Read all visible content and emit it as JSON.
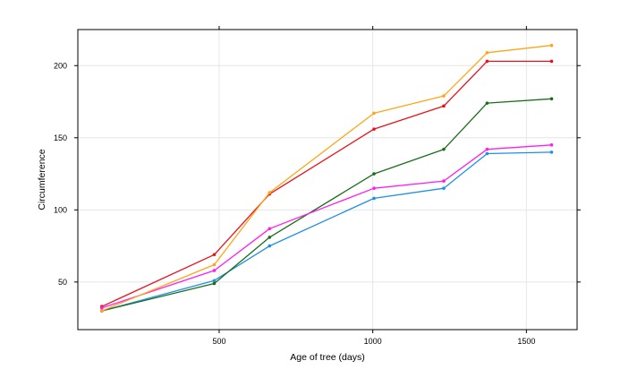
{
  "chart_data": {
    "type": "line",
    "title": "",
    "xlabel": "Age of tree (days)",
    "ylabel": "Circumference",
    "xlim": [
      40,
      1665
    ],
    "ylim": [
      17,
      225
    ],
    "xticks": [
      500,
      1000,
      1500
    ],
    "yticks": [
      50,
      100,
      150,
      200
    ],
    "grid": true,
    "legend": "none",
    "x": [
      118,
      484,
      664,
      1004,
      1231,
      1372,
      1582
    ],
    "series": [
      {
        "color": "#1f8fe5",
        "values": [
          30,
          51,
          75,
          108,
          115,
          139,
          140
        ]
      },
      {
        "color": "#e8111a",
        "values": [
          33,
          69,
          111,
          156,
          172,
          203,
          203
        ]
      },
      {
        "color": "#1a6e1a",
        "values": [
          30,
          49,
          81,
          125,
          142,
          174,
          177
        ]
      },
      {
        "color": "#ff1ef0",
        "values": [
          32,
          58,
          87,
          115,
          120,
          142,
          145
        ]
      },
      {
        "color": "#ffa516",
        "values": [
          30,
          62,
          112,
          167,
          179,
          209,
          214
        ]
      }
    ]
  }
}
